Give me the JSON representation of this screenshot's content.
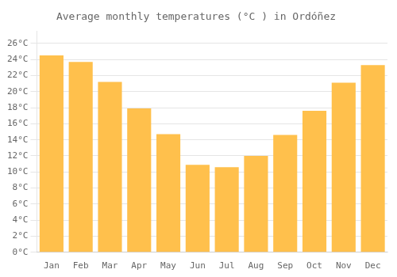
{
  "chart_data": {
    "type": "bar",
    "title": "Average monthly temperatures (°C ) in Ordóñez",
    "categories": [
      "Jan",
      "Feb",
      "Mar",
      "Apr",
      "May",
      "Jun",
      "Jul",
      "Aug",
      "Sep",
      "Oct",
      "Nov",
      "Dec"
    ],
    "values": [
      24.5,
      23.7,
      21.2,
      17.9,
      14.7,
      10.9,
      10.6,
      12.0,
      14.6,
      17.6,
      21.1,
      23.3
    ],
    "color": "#FFC04C",
    "ylim": [
      0,
      27.5
    ],
    "yticks": [
      {
        "value": 0,
        "label": "0°C"
      },
      {
        "value": 2,
        "label": "2°C"
      },
      {
        "value": 4,
        "label": "4°C"
      },
      {
        "value": 6,
        "label": "6°C"
      },
      {
        "value": 8,
        "label": "8°C"
      },
      {
        "value": 10,
        "label": "10°C"
      },
      {
        "value": 12,
        "label": "12°C"
      },
      {
        "value": 14,
        "label": "14°C"
      },
      {
        "value": 16,
        "label": "16°C"
      },
      {
        "value": 18,
        "label": "18°C"
      },
      {
        "value": 20,
        "label": "20°C"
      },
      {
        "value": 22,
        "label": "22°C"
      },
      {
        "value": 24,
        "label": "24°C"
      },
      {
        "value": 26,
        "label": "26°C"
      }
    ],
    "grid": true
  }
}
